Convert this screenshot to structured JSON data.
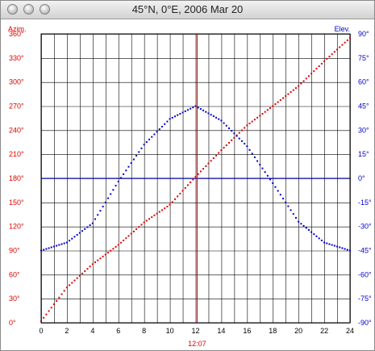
{
  "window": {
    "title": "45°N, 0°E, 2006 Mar 20"
  },
  "colors": {
    "azimuth": "#dd0000",
    "elevation": "#0000cc",
    "grid": "#000000",
    "background": "#ffffff"
  },
  "icons": [
    "close-button",
    "minimize-button",
    "zoom-button"
  ],
  "chart_data": {
    "type": "scatter",
    "title": "",
    "x": {
      "label": "",
      "min": 0,
      "max": 24,
      "ticks": [
        0,
        2,
        4,
        6,
        8,
        10,
        12,
        14,
        16,
        18,
        20,
        22,
        24
      ]
    },
    "y_left": {
      "label": "Azim.",
      "min": 0,
      "max": 360,
      "ticks": [
        "0°",
        "30°",
        "60°",
        "90°",
        "120°",
        "150°",
        "180°",
        "210°",
        "240°",
        "270°",
        "300°",
        "330°",
        "360°"
      ]
    },
    "y_right": {
      "label": "Elev.",
      "min": -90,
      "max": 90,
      "ticks": [
        "-90°",
        "-75°",
        "-60°",
        "-45°",
        "-30°",
        "-15°",
        "0°",
        "15°",
        "30°",
        "45°",
        "60°",
        "75°",
        "90°"
      ]
    },
    "grid": true,
    "marker": {
      "x": 12.12,
      "label": "12:07"
    },
    "reference_line": {
      "axis": "y_right",
      "value": 0
    },
    "sample_interval_hours": 0.2,
    "series": [
      {
        "name": "Azim.",
        "axis": "y_left",
        "color": "#dd0000",
        "x": [
          0,
          2,
          4,
          6,
          8,
          10,
          12,
          14,
          16,
          18,
          20,
          22,
          24
        ],
        "y": [
          2,
          44,
          73,
          97,
          125,
          147,
          182,
          215,
          246,
          270,
          295,
          326,
          355
        ]
      },
      {
        "name": "Elev.",
        "axis": "y_right",
        "color": "#0000cc",
        "x": [
          0,
          2,
          4,
          6,
          8,
          10,
          12,
          14,
          16,
          18,
          20,
          22,
          24
        ],
        "y": [
          -45,
          -40,
          -28,
          -2,
          21,
          37,
          45,
          36,
          20,
          -3,
          -27,
          -40,
          -45
        ]
      }
    ]
  }
}
